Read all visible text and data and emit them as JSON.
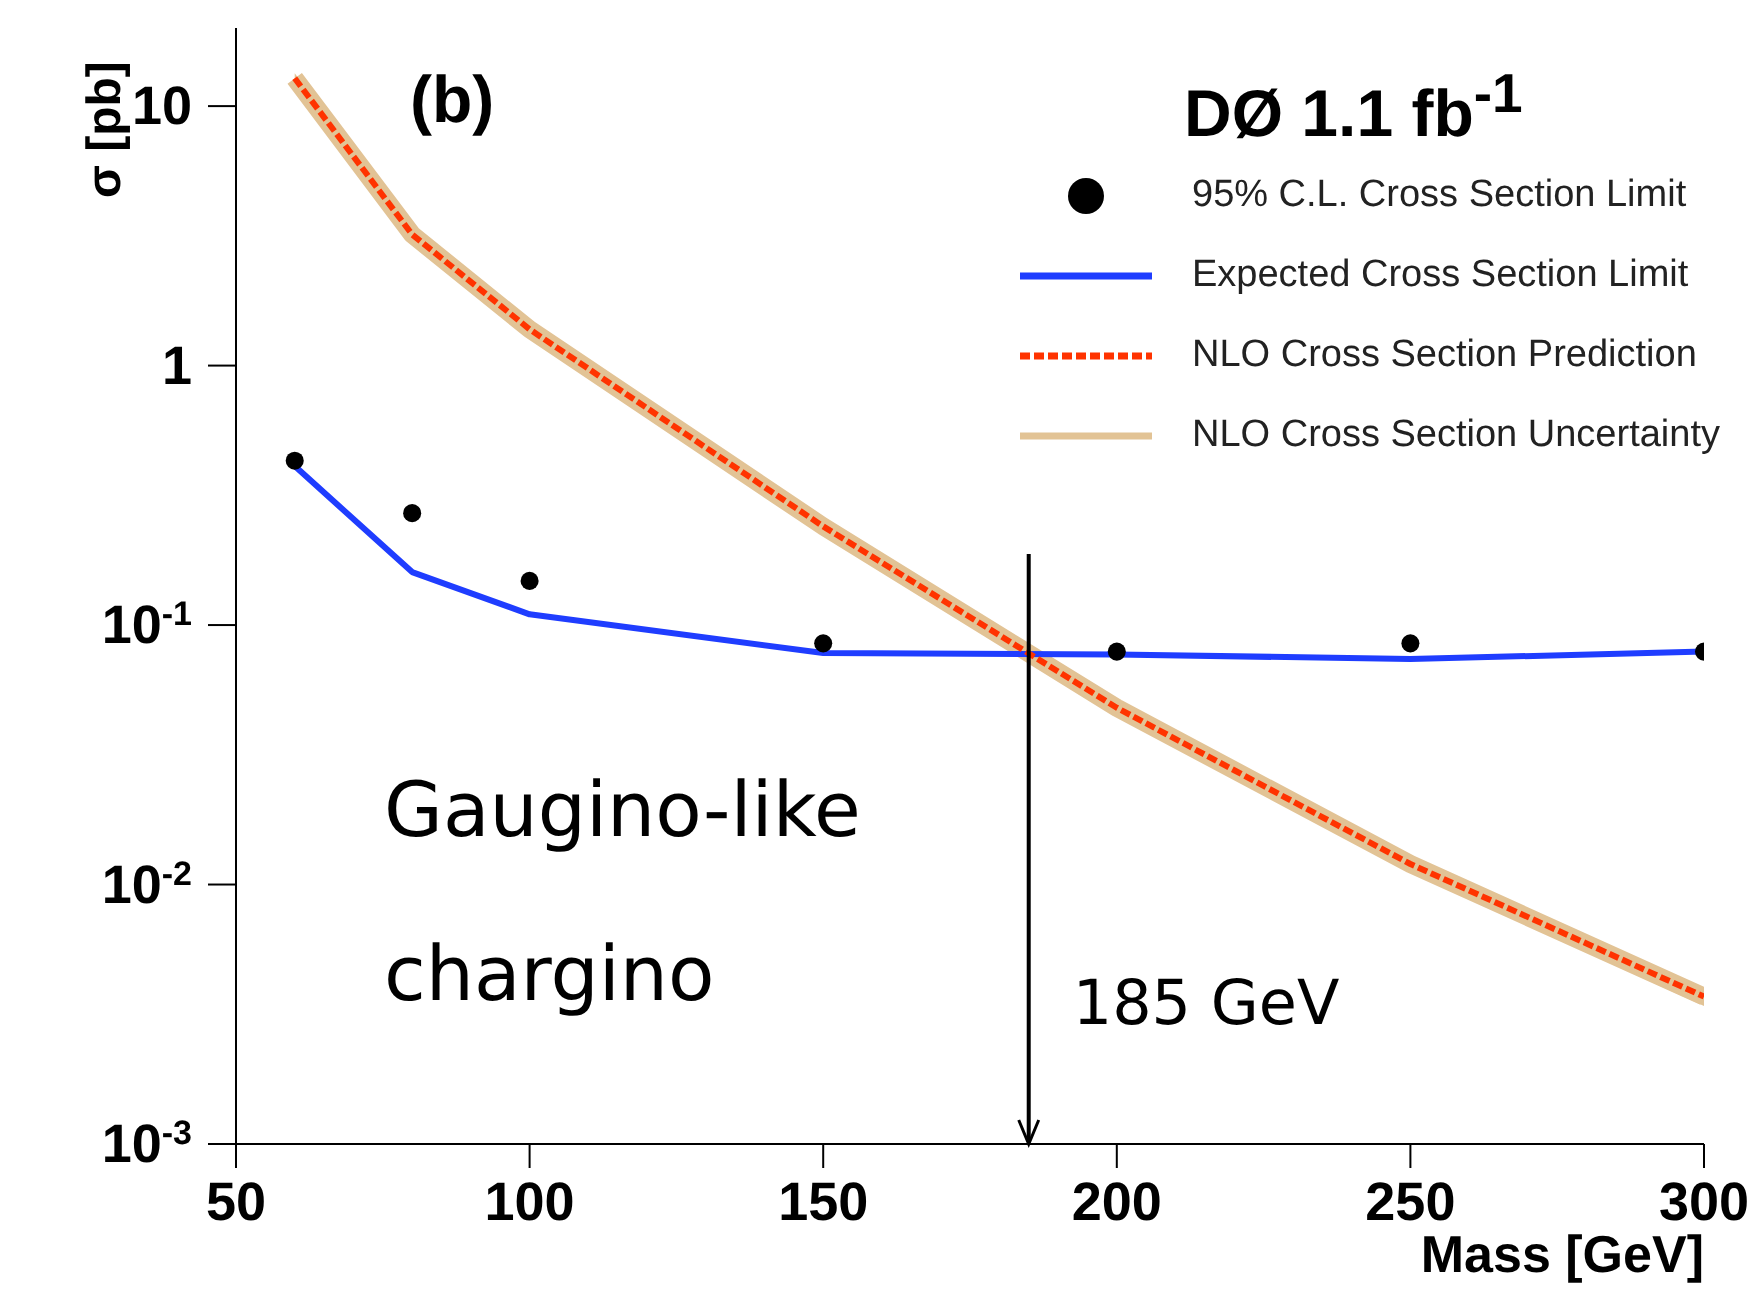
{
  "chart_data": {
    "type": "line",
    "xlabel": "Mass [GeV]",
    "ylabel": "σ [pb]",
    "x": [
      60,
      80,
      100,
      150,
      200,
      250,
      300
    ],
    "series": [
      {
        "name": "95% C.L. Cross Section Limit",
        "type": "scatter",
        "color": "#000000",
        "marker": "circle",
        "values": [
          0.43,
          0.27,
          0.148,
          0.085,
          0.079,
          0.085,
          0.079
        ]
      },
      {
        "name": "Expected Cross Section Limit",
        "color": "#1f3dff",
        "line_style": "solid",
        "marker": "none",
        "values": [
          0.41,
          0.16,
          0.11,
          0.078,
          0.077,
          0.074,
          0.079
        ]
      },
      {
        "name": "NLO Cross Section Prediction",
        "color": "#ff3300",
        "line_style": "dashed",
        "marker": "none",
        "values": [
          12.8,
          3.2,
          1.38,
          0.24,
          0.048,
          0.012,
          0.0037
        ]
      },
      {
        "name": "NLO Cross Section Uncertainty",
        "color": "#e2c395",
        "line_style": "solid",
        "marker": "none",
        "values": [
          12.8,
          3.2,
          1.38,
          0.24,
          0.048,
          0.012,
          0.0037
        ],
        "lower": [
          12.2,
          3.05,
          1.31,
          0.225,
          0.045,
          0.0112,
          0.0034
        ],
        "upper": [
          13.4,
          3.35,
          1.45,
          0.255,
          0.051,
          0.0129,
          0.004
        ]
      }
    ],
    "xlim": [
      50,
      300
    ],
    "xticks": [
      50,
      100,
      150,
      200,
      250,
      300
    ],
    "ylim": [
      0.001,
      20
    ],
    "yticks": [
      {
        "value": 0.001,
        "label": "10$^{-3}$"
      },
      {
        "value": 0.01,
        "label": "10$^{-2}$"
      },
      {
        "value": 0.1,
        "label": "10$^{-1}$"
      },
      1,
      10
    ],
    "log": "y",
    "grid": false,
    "legend": "top right",
    "ref_lines": [
      {
        "axis": "x",
        "value": 185,
        "label": "185 GeV"
      }
    ],
    "annotations": [
      "(b)",
      "DØ 1.1 fb$^{-1}$",
      "Gaugino-like",
      "chargino"
    ]
  }
}
